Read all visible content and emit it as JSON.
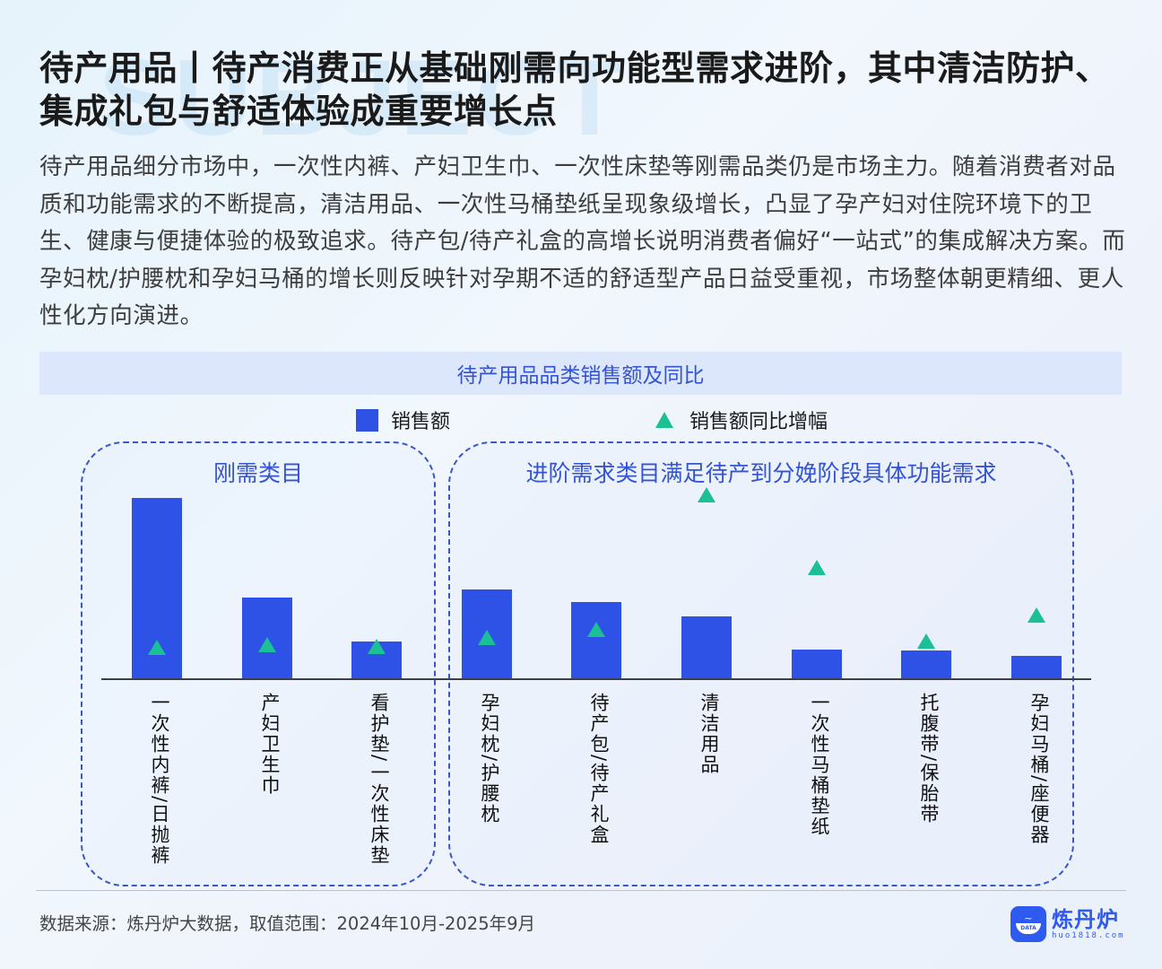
{
  "header": {
    "watermark_word": "SUBJECT",
    "title": "待产用品丨待产消费正从基础刚需向功能型需求进阶，其中清洁防护、集成礼包与舒适体验成重要增长点",
    "description": "待产用品细分市场中，一次性内裤、产妇卫生巾、一次性床垫等刚需品类仍是市场主力。随着消费者对品质和功能需求的不断提高，清洁用品、一次性马桶垫纸呈现象级增长，凸显了孕产妇对住院环境下的卫生、健康与便捷体验的极致追求。待产包/待产礼盒的高增长说明消费者偏好“一站式”的集成解决方案。而孕妇枕/护腰枕和孕妇马桶的增长则反映针对孕期不适的舒适型产品日益受重视，市场整体朝更精细、更人性化方向演进。"
  },
  "chart": {
    "header": "待产用品品类销售额及同比",
    "legend": {
      "bar_label": "销售额",
      "marker_label": "销售额同比增幅"
    },
    "groups": [
      {
        "label": "刚需类目"
      },
      {
        "label": "进阶需求类目满足待产到分娩阶段具体功能需求"
      }
    ],
    "colors": {
      "bar": "#2f52e6",
      "marker": "#1bc094",
      "group_border": "#3a57c8",
      "header_bg": "#dde7fb",
      "accent_text": "#3554d1"
    }
  },
  "chart_data": {
    "type": "bar",
    "title": "待产用品品类销售额及同比",
    "xlabel": "",
    "ylabel": "",
    "note": "No y-axis ticks or data labels shown; values are relative pixel heights (bar: height above baseline; marker: height of triangle above baseline), arbitrary units.",
    "categories": [
      "一次性内裤/日抛裤",
      "产妇卫生巾",
      "看护垫/一次性床垫",
      "孕妇枕/护腰枕",
      "待产包/待产礼盒",
      "清洁用品",
      "一次性马桶垫纸",
      "托腹带/保胎带",
      "孕妇马桶/座便器"
    ],
    "category_groups": [
      {
        "name": "刚需类目",
        "categories": [
          "一次性内裤/日抛裤",
          "产妇卫生巾",
          "看护垫/一次性床垫"
        ]
      },
      {
        "name": "进阶需求类目满足待产到分娩阶段具体功能需求",
        "categories": [
          "孕妇枕/护腰枕",
          "待产包/待产礼盒",
          "清洁用品",
          "一次性马桶垫纸",
          "托腹带/保胎带",
          "孕妇马桶/座便器"
        ]
      }
    ],
    "series": [
      {
        "name": "销售额",
        "type": "bar",
        "values": [
          202,
          91,
          42,
          100,
          86,
          70,
          33,
          32,
          26
        ]
      },
      {
        "name": "销售额同比增幅",
        "type": "scatter",
        "marker": "triangle",
        "values": [
          36,
          39,
          37,
          47,
          56,
          206,
          125,
          43,
          72
        ]
      }
    ],
    "legend_position": "top",
    "grid": false
  },
  "footer": {
    "source": "数据来源：炼丹炉大数据，取值范围：2024年10月-2025年9月",
    "logo_name": "炼丹炉",
    "logo_url": "huo1818.com",
    "logo_badge": "DATA"
  }
}
